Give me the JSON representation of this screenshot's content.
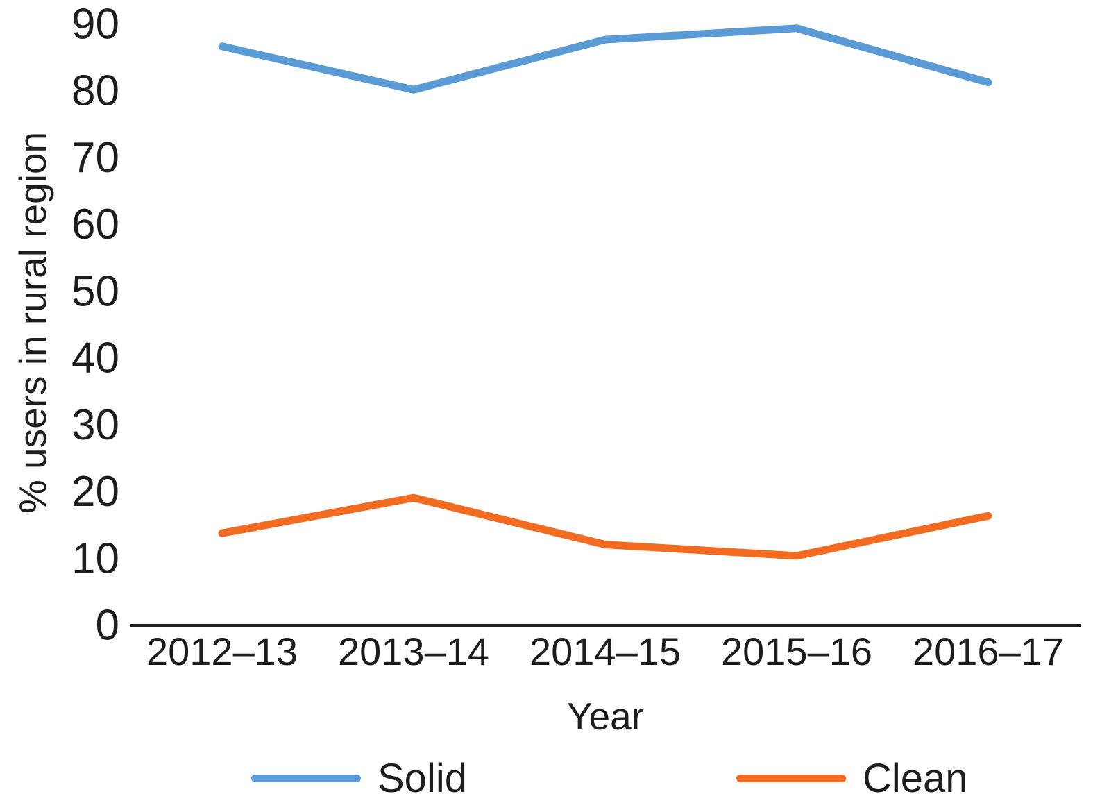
{
  "chart_data": {
    "type": "line",
    "title": "",
    "xlabel": "Year",
    "ylabel": "% users in rural region",
    "categories": [
      "2012–13",
      "2013–14",
      "2014–15",
      "2015–16",
      "2016–17"
    ],
    "series": [
      {
        "name": "Solid",
        "color": "#5B9BD5",
        "values": [
          86.7,
          80.2,
          87.7,
          89.4,
          81.3
        ]
      },
      {
        "name": "Clean",
        "color": "#F26B21",
        "values": [
          13.8,
          19.1,
          12.1,
          10.4,
          16.4
        ]
      }
    ],
    "ylim": [
      0,
      90
    ],
    "yticks": [
      0,
      10,
      20,
      30,
      40,
      50,
      60,
      70,
      80,
      90
    ],
    "grid": false,
    "legend_position": "bottom",
    "axis_color": "#231f20",
    "text_color": "#1d1d1b"
  }
}
